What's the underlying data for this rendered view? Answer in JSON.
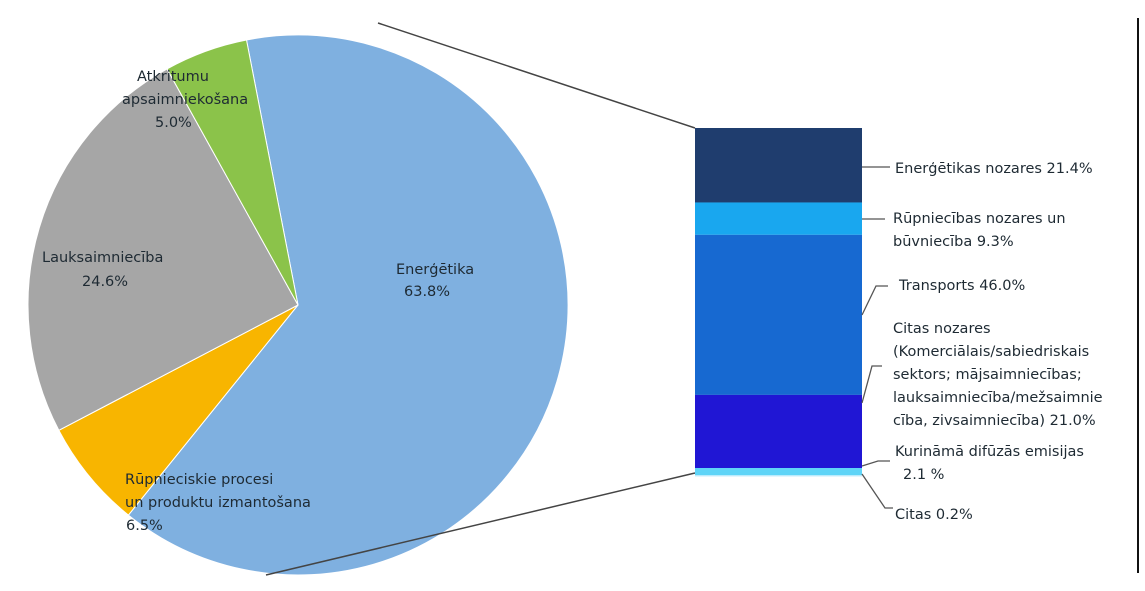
{
  "chart_data": {
    "type": "pie",
    "pie": {
      "slices": [
        {
          "label": "Enerģētika",
          "value": 63.8,
          "value_label": "63.8%",
          "color": "#7fb0e0"
        },
        {
          "label": "Rūpnieciskie procesi un produktu izmantošana",
          "value": 6.5,
          "value_label": "6.5%",
          "color": "#f8b500"
        },
        {
          "label": "Lauksaimniecība",
          "value": 24.6,
          "value_label": "24.6%",
          "color": "#a6a6a6"
        },
        {
          "label": "Atkritumu apsaimniekošana",
          "value": 5.0,
          "value_label": "5.0%",
          "color": "#8bc34a"
        }
      ]
    },
    "breakdown": {
      "of": "Enerģētika",
      "type": "stacked-bar",
      "segments": [
        {
          "label": "Enerģētikas nozares 21.4%",
          "value": 21.4,
          "color": "#1f3d6e"
        },
        {
          "label": "Rūpniecības nozares un būvniecība 9.3%",
          "value": 9.3,
          "color": "#19a7ef"
        },
        {
          "label": "Transports 46.0%",
          "value": 46.0,
          "color": "#1769d1"
        },
        {
          "label": "Citas nozares (Komerciālais/sabiedriskais sektors; mājsaimniecības; lauksaimniecība/mežsaimniecība, zivsaimniecība) 21.0%",
          "value": 21.0,
          "color": "#2016d4"
        },
        {
          "label": "Kurināmā difūzās emisijas 2.1 %",
          "value": 2.1,
          "color": "#5fd4f7"
        },
        {
          "label": "Citas 0.2%",
          "value": 0.2,
          "color": "#c6eefc"
        }
      ]
    }
  },
  "text": {
    "pie_labels": {
      "energetika": [
        "Enerģētika",
        "63.8%"
      ],
      "rupn": [
        "Rūpnieciskie procesi",
        "un produktu izmantošana",
        "6.5%"
      ],
      "lauks": [
        "Lauksaimniecība",
        "24.6%"
      ],
      "atkr": [
        "Atkritumu",
        "apsaimniekošana",
        "5.0%"
      ]
    },
    "bar_labels": {
      "s0": [
        "Enerģētikas nozares 21.4%"
      ],
      "s1": [
        "Rūpniecības nozares un",
        "būvniecība 9.3%"
      ],
      "s2": [
        "Transports 46.0%"
      ],
      "s3": [
        "Citas nozares",
        "(Komerciālais/sabiedriskais",
        "sektors; mājsaimniecības;",
        "lauksaimniecība/mežsaimnie",
        "cība, zivsaimniecība) 21.0%"
      ],
      "s4": [
        "Kurināmā difūzās emisijas",
        "2.1 %"
      ],
      "s5": [
        "Citas 0.2%"
      ]
    }
  }
}
